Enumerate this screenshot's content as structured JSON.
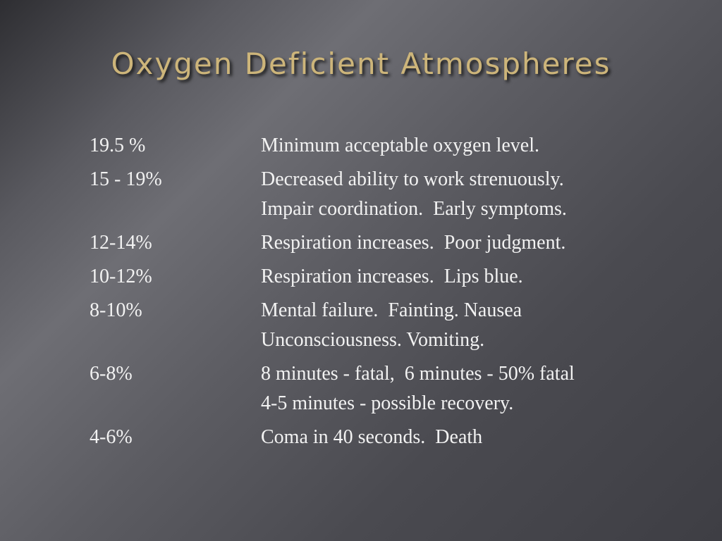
{
  "title": "Oxygen Deficient Atmospheres",
  "rows": [
    {
      "level": "19.5 %",
      "effects": [
        "Minimum acceptable oxygen level."
      ]
    },
    {
      "level": "15 - 19%",
      "effects": [
        "Decreased ability to work strenuously.",
        "Impair coordination.  Early symptoms."
      ]
    },
    {
      "level": "12-14%",
      "effects": [
        "Respiration increases.  Poor judgment."
      ]
    },
    {
      "level": "10-12%",
      "effects": [
        "Respiration increases.  Lips blue."
      ]
    },
    {
      "level": "8-10%",
      "effects": [
        "Mental failure.  Fainting. Nausea",
        "Unconsciousness. Vomiting."
      ]
    },
    {
      "level": "6-8%",
      "effects": [
        "8 minutes - fatal,  6 minutes - 50% fatal",
        "4-5 minutes - possible recovery."
      ]
    },
    {
      "level": "4-6%",
      "effects": [
        "Coma in 40 seconds.  Death"
      ]
    }
  ]
}
